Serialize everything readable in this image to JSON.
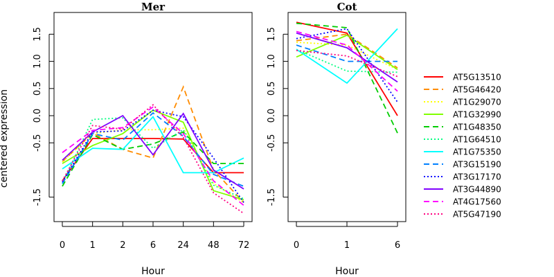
{
  "chart_data": [
    {
      "type": "line",
      "title": "Mer",
      "xlabel": "Hour",
      "ylabel": "centered expression",
      "categories": [
        "0",
        "1",
        "2",
        "6",
        "24",
        "48",
        "72"
      ],
      "ylim": [
        -1.95,
        1.9
      ],
      "yticks": [
        -1.5,
        -0.5,
        0.0,
        0.5,
        1.0,
        1.5
      ],
      "ytick_labels": [
        "-1.5",
        "-0.5",
        "0.0",
        "0.5",
        "1.0",
        "1.5"
      ],
      "series": [
        {
          "name": "AT5G13510",
          "values": [
            -1.2,
            -0.42,
            -0.42,
            -0.42,
            -0.43,
            -1.05,
            -1.05
          ]
        },
        {
          "name": "AT5G46420",
          "values": [
            -0.85,
            -0.32,
            -0.62,
            -0.78,
            0.53,
            -1.0,
            -1.6
          ]
        },
        {
          "name": "AT1G29070",
          "values": [
            -0.85,
            -0.33,
            -0.26,
            -0.26,
            -0.23,
            -1.25,
            -1.6
          ]
        },
        {
          "name": "AT1G32990",
          "values": [
            -0.88,
            -0.55,
            -0.33,
            0.1,
            -0.12,
            -1.38,
            -1.55
          ]
        },
        {
          "name": "AT1G48350",
          "values": [
            -1.3,
            -0.35,
            -0.62,
            -0.52,
            -0.3,
            -0.88,
            -0.88
          ]
        },
        {
          "name": "AT1G64510",
          "values": [
            -1.25,
            -0.07,
            -0.04,
            -0.6,
            -0.26,
            -1.28,
            -1.53
          ]
        },
        {
          "name": "AT1G75350",
          "values": [
            -0.98,
            -0.6,
            -0.62,
            -0.02,
            -1.05,
            -1.05,
            -0.78
          ]
        },
        {
          "name": "AT3G15190",
          "values": [
            -1.25,
            -0.33,
            -0.45,
            0.05,
            -0.38,
            -1.08,
            -1.3
          ]
        },
        {
          "name": "AT3G17170",
          "values": [
            -1.22,
            -0.3,
            -0.28,
            0.1,
            -0.02,
            -0.78,
            -1.6
          ]
        },
        {
          "name": "AT3G44890",
          "values": [
            -0.82,
            -0.3,
            0.0,
            -0.72,
            0.04,
            -1.0,
            -1.35
          ]
        },
        {
          "name": "AT4G17560",
          "values": [
            -0.68,
            -0.27,
            -0.22,
            0.16,
            -0.33,
            -1.2,
            -1.65
          ]
        },
        {
          "name": "AT5G47190",
          "values": [
            -1.2,
            -0.18,
            -0.25,
            0.2,
            -0.4,
            -1.42,
            -1.8
          ]
        }
      ]
    },
    {
      "type": "line",
      "title": "Cot",
      "xlabel": "Hour",
      "ylabel": "",
      "categories": [
        "0",
        "1",
        "6"
      ],
      "ylim": [
        -1.95,
        1.9
      ],
      "yticks": [
        -1.5,
        -0.5,
        0.0,
        0.5,
        1.0,
        1.5
      ],
      "ytick_labels": [
        "-1.5",
        "-0.5",
        "0.0",
        "0.5",
        "1.0",
        "1.5"
      ],
      "series": [
        {
          "name": "AT5G13510",
          "values": [
            1.72,
            1.52,
            0.0
          ]
        },
        {
          "name": "AT5G46420",
          "values": [
            1.38,
            1.5,
            0.88
          ]
        },
        {
          "name": "AT1G29070",
          "values": [
            1.35,
            1.3,
            0.85
          ]
        },
        {
          "name": "AT1G32990",
          "values": [
            1.08,
            1.48,
            0.85
          ]
        },
        {
          "name": "AT1G48350",
          "values": [
            1.7,
            1.62,
            -0.32
          ]
        },
        {
          "name": "AT1G64510",
          "values": [
            1.22,
            0.82,
            0.8
          ]
        },
        {
          "name": "AT1G75350",
          "values": [
            1.22,
            0.6,
            1.6
          ]
        },
        {
          "name": "AT3G15190",
          "values": [
            1.3,
            1.0,
            1.0
          ]
        },
        {
          "name": "AT3G17170",
          "values": [
            1.42,
            1.6,
            0.25
          ]
        },
        {
          "name": "AT3G44890",
          "values": [
            1.52,
            1.25,
            0.62
          ]
        },
        {
          "name": "AT4G17560",
          "values": [
            1.55,
            1.3,
            0.45
          ]
        },
        {
          "name": "AT5G47190",
          "values": [
            1.2,
            1.1,
            0.72
          ]
        }
      ]
    }
  ],
  "legend": {
    "placement": "right",
    "items": [
      {
        "name": "AT5G13510",
        "color": "#ff0000",
        "dash": "solid"
      },
      {
        "name": "AT5G46420",
        "color": "#ff8c00",
        "dash": "dashed"
      },
      {
        "name": "AT1G29070",
        "color": "#ffff00",
        "dash": "dotted"
      },
      {
        "name": "AT1G32990",
        "color": "#80ff00",
        "dash": "solid"
      },
      {
        "name": "AT1G48350",
        "color": "#00cc00",
        "dash": "dashed"
      },
      {
        "name": "AT1G64510",
        "color": "#00ff80",
        "dash": "dotted"
      },
      {
        "name": "AT1G75350",
        "color": "#00ffff",
        "dash": "solid"
      },
      {
        "name": "AT3G15190",
        "color": "#0080ff",
        "dash": "dashed"
      },
      {
        "name": "AT3G17170",
        "color": "#0000ff",
        "dash": "dotted"
      },
      {
        "name": "AT3G44890",
        "color": "#8000ff",
        "dash": "solid"
      },
      {
        "name": "AT4G17560",
        "color": "#ff00ff",
        "dash": "dashed"
      },
      {
        "name": "AT5G47190",
        "color": "#ff0080",
        "dash": "dotted"
      }
    ]
  }
}
